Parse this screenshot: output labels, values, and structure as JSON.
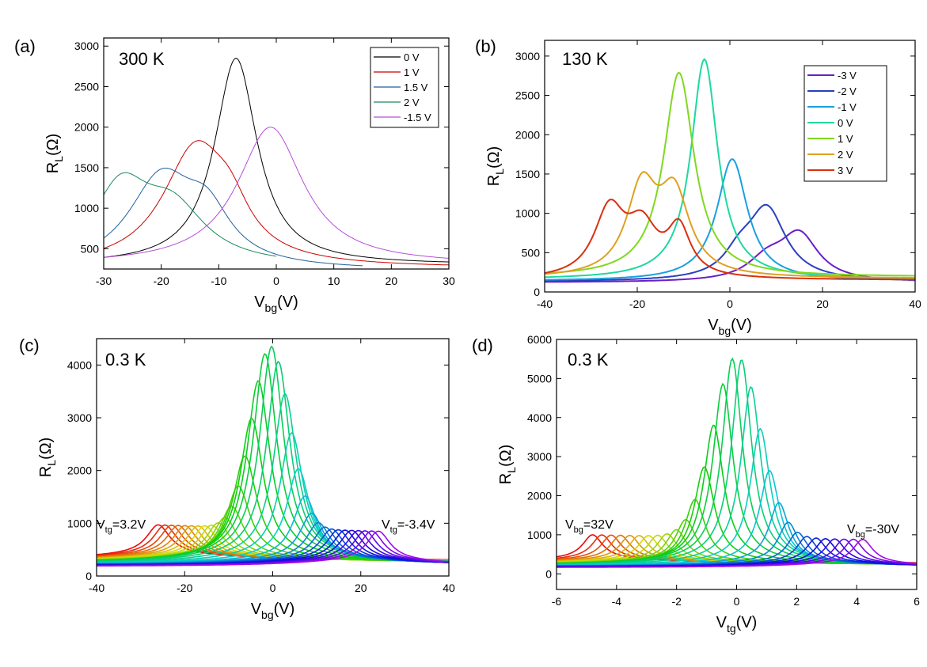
{
  "chart_data": [
    {
      "type": "line",
      "panel": "(a)",
      "temperature": "300 K",
      "xlabel": "V",
      "xlabel_sub": "bg",
      "xlabel_unit": "(V)",
      "ylabel": "R",
      "ylabel_sub": "L",
      "ylabel_unit": "(Ω)",
      "xlim": [
        -30,
        30
      ],
      "ylim": [
        250,
        3100
      ],
      "xticks": [
        -30,
        -20,
        -10,
        0,
        10,
        20,
        30
      ],
      "yticks": [
        500,
        1000,
        1500,
        2000,
        2500,
        3000
      ],
      "legend_position": "top-right",
      "series": [
        {
          "name": "0 V",
          "color": "#000000",
          "kind": "lorentz",
          "x_range": [
            -30,
            30
          ],
          "peaks": [
            {
              "x": -7,
              "h": 2550,
              "w": 4.5
            }
          ],
          "base": 300
        },
        {
          "name": "1 V",
          "color": "#cc0000",
          "kind": "lorentz",
          "x_range": [
            -30,
            30
          ],
          "peaks": [
            {
              "x": -14,
              "h": 1450,
              "w": 7
            },
            {
              "x": -8,
              "h": 380,
              "w": 4
            }
          ],
          "base": 260
        },
        {
          "name": "1.5 V",
          "color": "#1f5fa0",
          "kind": "lorentz",
          "x_range": [
            -30,
            15
          ],
          "peaks": [
            {
              "x": -20,
              "h": 1100,
              "w": 7
            },
            {
              "x": -12,
              "h": 550,
              "w": 5
            }
          ],
          "base": 230
        },
        {
          "name": "2 V",
          "color": "#1a8a5a",
          "kind": "lorentz",
          "x_range": [
            -30,
            0
          ],
          "peaks": [
            {
              "x": -27,
              "h": 900,
              "w": 6
            },
            {
              "x": -18,
              "h": 650,
              "w": 7
            }
          ],
          "base": 280
        },
        {
          "name": "-1.5 V",
          "color": "#b44fd8",
          "kind": "lorentz",
          "x_range": [
            -30,
            30
          ],
          "peaks": [
            {
              "x": -1,
              "h": 1700,
              "w": 7
            }
          ],
          "base": 300
        }
      ]
    },
    {
      "type": "line",
      "panel": "(b)",
      "temperature": "130 K",
      "xlabel": "V",
      "xlabel_sub": "bg",
      "xlabel_unit": "(V)",
      "ylabel": "R",
      "ylabel_sub": "L",
      "ylabel_unit": "(Ω)",
      "xlim": [
        -40,
        40
      ],
      "ylim": [
        0,
        3200
      ],
      "xticks": [
        -40,
        -20,
        0,
        20,
        40
      ],
      "yticks": [
        0,
        500,
        1000,
        1500,
        2000,
        2500,
        3000
      ],
      "legend_position": "top-right",
      "series": [
        {
          "name": "-3 V",
          "color": "#6a1fc8",
          "kind": "lorentz",
          "x_range": [
            -40,
            40
          ],
          "peaks": [
            {
              "x": 15,
              "h": 580,
              "w": 5
            },
            {
              "x": 8,
              "h": 250,
              "w": 5
            }
          ],
          "base": 120
        },
        {
          "name": "-2 V",
          "color": "#2a40c0",
          "kind": "lorentz",
          "x_range": [
            -40,
            40
          ],
          "peaks": [
            {
              "x": 8,
              "h": 900,
              "w": 5
            },
            {
              "x": 2,
              "h": 250,
              "w": 4
            }
          ],
          "base": 130
        },
        {
          "name": "-1 V",
          "color": "#1aa0e0",
          "kind": "lorentz",
          "x_range": [
            -40,
            40
          ],
          "peaks": [
            {
              "x": 0.5,
              "h": 1550,
              "w": 4
            }
          ],
          "base": 140
        },
        {
          "name": "0 V",
          "color": "#1ed8a0",
          "kind": "lorentz",
          "x_range": [
            -40,
            40
          ],
          "peaks": [
            {
              "x": -5.5,
              "h": 2800,
              "w": 3.5
            }
          ],
          "base": 160
        },
        {
          "name": "1 V",
          "color": "#80d820",
          "kind": "lorentz",
          "x_range": [
            -40,
            40
          ],
          "peaks": [
            {
              "x": -11,
              "h": 2600,
              "w": 4
            }
          ],
          "base": 190
        },
        {
          "name": "2 V",
          "color": "#e0a020",
          "kind": "lorentz",
          "x_range": [
            -40,
            40
          ],
          "peaks": [
            {
              "x": -19,
              "h": 1100,
              "w": 4
            },
            {
              "x": -12,
              "h": 1000,
              "w": 4
            }
          ],
          "base": 170
        },
        {
          "name": "3 V",
          "color": "#d83010",
          "kind": "lorentz",
          "x_range": [
            -40,
            40
          ],
          "peaks": [
            {
              "x": -26,
              "h": 850,
              "w": 4
            },
            {
              "x": -19,
              "h": 600,
              "w": 4
            },
            {
              "x": -11,
              "h": 600,
              "w": 3
            }
          ],
          "base": 150
        }
      ]
    },
    {
      "type": "line",
      "panel": "(c)",
      "temperature": "0.3 K",
      "xlabel": "V",
      "xlabel_sub": "bg",
      "xlabel_unit": "(V)",
      "ylabel": "R",
      "ylabel_sub": "L",
      "ylabel_unit": "(Ω)",
      "xlim": [
        -40,
        40
      ],
      "ylim": [
        0,
        4500
      ],
      "xticks": [
        -40,
        -20,
        0,
        20,
        40
      ],
      "yticks": [
        0,
        1000,
        2000,
        3000,
        4000
      ],
      "annotations": [
        {
          "main": "V",
          "sub": "tg",
          "rest": "=3.2V"
        },
        {
          "main": "V",
          "sub": "tg",
          "rest": "=-3.4V"
        }
      ],
      "family": {
        "count": 34,
        "param_from": 3.2,
        "param_to": -3.4,
        "peak_x_from": -26,
        "peak_x_to": 24,
        "x_range": [
          -40,
          40
        ],
        "peak_height_center": 4000,
        "peak_height_edge": 550,
        "center_x": -0.5,
        "center_width": 6,
        "width": 3.2,
        "base": 180
      }
    },
    {
      "type": "line",
      "panel": "(d)",
      "temperature": "0.3 K",
      "xlabel": "V",
      "xlabel_sub": "tg",
      "xlabel_unit": "(V)",
      "ylabel": "R",
      "ylabel_sub": "L",
      "ylabel_unit": "(Ω)",
      "xlim": [
        -6,
        6
      ],
      "ylim": [
        -400,
        6000
      ],
      "xticks": [
        -6,
        -4,
        -2,
        0,
        2,
        4,
        6
      ],
      "yticks": [
        0,
        1000,
        2000,
        3000,
        4000,
        5000,
        6000
      ],
      "annotations": [
        {
          "main": "V",
          "sub": "bg",
          "rest": "=32V"
        },
        {
          "main": "V",
          "sub": "bg",
          "rest": "=-30V"
        }
      ],
      "family": {
        "count": 30,
        "param_from": 32,
        "param_to": -30,
        "peak_x_from": -4.8,
        "peak_x_to": 4.2,
        "x_range": [
          -6,
          6
        ],
        "peak_height_center": 5250,
        "peak_height_edge": 600,
        "center_x": 0,
        "center_width": 1.1,
        "width": 0.4,
        "base": 160
      }
    }
  ]
}
